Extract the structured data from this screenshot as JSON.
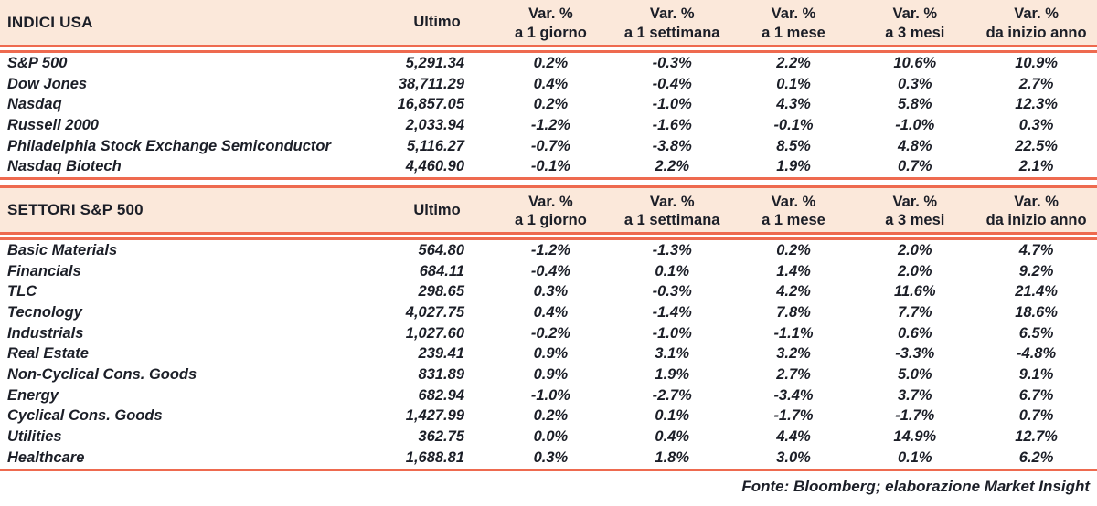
{
  "colors": {
    "header_band": "#fbe8da",
    "rule_line": "#ee6a4f",
    "text": "#1b1e27"
  },
  "columns": {
    "ultimo": "Ultimo",
    "var_label": "Var. %",
    "periods": [
      "a 1 giorno",
      "a 1 settimana",
      "a 1 mese",
      "a 3 mesi",
      "da inizio anno"
    ]
  },
  "tables": [
    {
      "title": "INDICI USA",
      "rows": [
        {
          "name": "S&P 500",
          "ultimo": "5,291.34",
          "vars": [
            "0.2%",
            "-0.3%",
            "2.2%",
            "10.6%",
            "10.9%"
          ]
        },
        {
          "name": "Dow Jones",
          "ultimo": "38,711.29",
          "vars": [
            "0.4%",
            "-0.4%",
            "0.1%",
            "0.3%",
            "2.7%"
          ]
        },
        {
          "name": "Nasdaq",
          "ultimo": "16,857.05",
          "vars": [
            "0.2%",
            "-1.0%",
            "4.3%",
            "5.8%",
            "12.3%"
          ]
        },
        {
          "name": "Russell 2000",
          "ultimo": "2,033.94",
          "vars": [
            "-1.2%",
            "-1.6%",
            "-0.1%",
            "-1.0%",
            "0.3%"
          ]
        },
        {
          "name": "Philadelphia Stock Exchange Semiconductor",
          "ultimo": "5,116.27",
          "vars": [
            "-0.7%",
            "-3.8%",
            "8.5%",
            "4.8%",
            "22.5%"
          ]
        },
        {
          "name": "Nasdaq Biotech",
          "ultimo": "4,460.90",
          "vars": [
            "-0.1%",
            "2.2%",
            "1.9%",
            "0.7%",
            "2.1%"
          ]
        }
      ]
    },
    {
      "title": "SETTORI S&P 500",
      "rows": [
        {
          "name": "Basic Materials",
          "ultimo": "564.80",
          "vars": [
            "-1.2%",
            "-1.3%",
            "0.2%",
            "2.0%",
            "4.7%"
          ]
        },
        {
          "name": "Financials",
          "ultimo": "684.11",
          "vars": [
            "-0.4%",
            "0.1%",
            "1.4%",
            "2.0%",
            "9.2%"
          ]
        },
        {
          "name": "TLC",
          "ultimo": "298.65",
          "vars": [
            "0.3%",
            "-0.3%",
            "4.2%",
            "11.6%",
            "21.4%"
          ]
        },
        {
          "name": "Tecnology",
          "ultimo": "4,027.75",
          "vars": [
            "0.4%",
            "-1.4%",
            "7.8%",
            "7.7%",
            "18.6%"
          ]
        },
        {
          "name": "Industrials",
          "ultimo": "1,027.60",
          "vars": [
            "-0.2%",
            "-1.0%",
            "-1.1%",
            "0.6%",
            "6.5%"
          ]
        },
        {
          "name": "Real Estate",
          "ultimo": "239.41",
          "vars": [
            "0.9%",
            "3.1%",
            "3.2%",
            "-3.3%",
            "-4.8%"
          ]
        },
        {
          "name": "Non-Cyclical Cons. Goods",
          "ultimo": "831.89",
          "vars": [
            "0.9%",
            "1.9%",
            "2.7%",
            "5.0%",
            "9.1%"
          ]
        },
        {
          "name": "Energy",
          "ultimo": "682.94",
          "vars": [
            "-1.0%",
            "-2.7%",
            "-3.4%",
            "3.7%",
            "6.7%"
          ]
        },
        {
          "name": "Cyclical Cons. Goods",
          "ultimo": "1,427.99",
          "vars": [
            "0.2%",
            "0.1%",
            "-1.7%",
            "-1.7%",
            "0.7%"
          ]
        },
        {
          "name": "Utilities",
          "ultimo": "362.75",
          "vars": [
            "0.0%",
            "0.4%",
            "4.4%",
            "14.9%",
            "12.7%"
          ]
        },
        {
          "name": "Healthcare",
          "ultimo": "1,688.81",
          "vars": [
            "0.3%",
            "1.8%",
            "3.0%",
            "0.1%",
            "6.2%"
          ]
        }
      ]
    }
  ],
  "footer": "Fonte: Bloomberg; elaborazione Market Insight"
}
